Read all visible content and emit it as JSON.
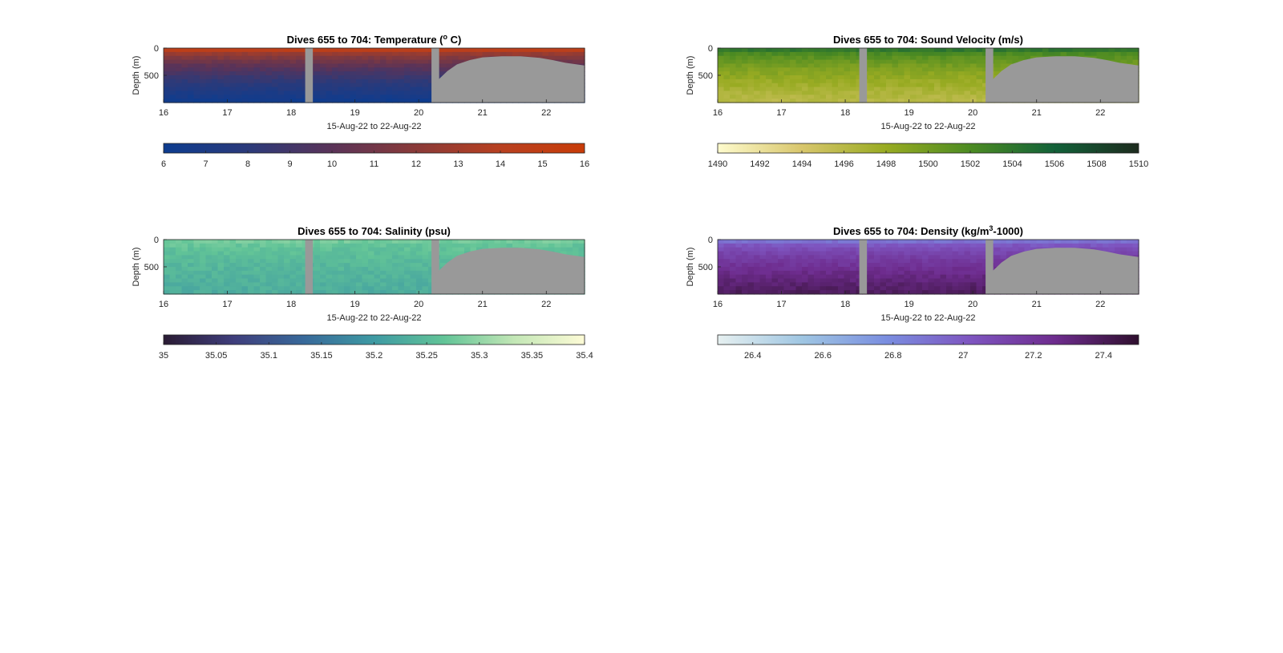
{
  "chart_data": [
    {
      "type": "heatmap",
      "title": "Dives 655 to 704: Temperature (° C)",
      "title_parts": [
        "Dives 655 to 704: Temperature (",
        "o",
        " C)"
      ],
      "xlabel": "15-Aug-22 to 22-Aug-22",
      "ylabel": "Depth (m)",
      "x_ticks": [
        "16",
        "17",
        "18",
        "19",
        "20",
        "21",
        "22"
      ],
      "y_ticks": [
        "0",
        "500"
      ],
      "xlim": [
        16,
        22.6
      ],
      "ylim": [
        0,
        1000
      ],
      "colorbar": {
        "ticks": [
          "6",
          "7",
          "8",
          "9",
          "10",
          "11",
          "12",
          "13",
          "14",
          "15",
          "16"
        ],
        "range": [
          6,
          16
        ],
        "colors": [
          "#0d3c8f",
          "#2b3a7a",
          "#5a3358",
          "#8a3a38",
          "#b84020",
          "#c83c08"
        ]
      },
      "surface_value": 14.5,
      "bottom_value": 6.3,
      "mask_color": "#999999"
    },
    {
      "type": "heatmap",
      "title": "Dives 655 to 704: Sound Velocity (m/s)",
      "title_parts": [
        "Dives 655 to 704: Sound Velocity (m/s)"
      ],
      "xlabel": "15-Aug-22 to 22-Aug-22",
      "ylabel": "Depth (m)",
      "x_ticks": [
        "16",
        "17",
        "18",
        "19",
        "20",
        "21",
        "22"
      ],
      "y_ticks": [
        "0",
        "500"
      ],
      "xlim": [
        16,
        22.6
      ],
      "ylim": [
        0,
        1000
      ],
      "colorbar": {
        "ticks": [
          "1490",
          "1492",
          "1494",
          "1496",
          "1498",
          "1500",
          "1502",
          "1504",
          "1506",
          "1508",
          "1510"
        ],
        "range": [
          1490,
          1510
        ],
        "colors": [
          "#fefbcd",
          "#d8c66c",
          "#98ab22",
          "#4c8b22",
          "#126139",
          "#1d2b1e"
        ]
      },
      "surface_value": 1504,
      "bottom_value": 1496,
      "mask_color": "#999999"
    },
    {
      "type": "heatmap",
      "title": "Dives 655 to 704: Salinity (psu)",
      "title_parts": [
        "Dives 655 to 704: Salinity (psu)"
      ],
      "xlabel": "15-Aug-22 to 22-Aug-22",
      "ylabel": "Depth (m)",
      "x_ticks": [
        "16",
        "17",
        "18",
        "19",
        "20",
        "21",
        "22"
      ],
      "y_ticks": [
        "0",
        "500"
      ],
      "xlim": [
        16,
        22.6
      ],
      "ylim": [
        0,
        1000
      ],
      "colorbar": {
        "ticks": [
          "35",
          "35.05",
          "35.1",
          "35.15",
          "35.2",
          "35.25",
          "35.3",
          "35.35",
          "35.4"
        ],
        "range": [
          35,
          35.4
        ],
        "colors": [
          "#2a1b34",
          "#3f3e7c",
          "#38699a",
          "#3e9aa3",
          "#62c497",
          "#c3e7b6",
          "#fdfbd6"
        ]
      },
      "surface_value": 35.28,
      "bottom_value": 35.23,
      "mask_color": "#999999"
    },
    {
      "type": "heatmap",
      "title": "Dives 655 to 704: Density (kg/m³-1000)",
      "title_parts": [
        "Dives 655 to 704: Density (kg/m",
        "3",
        "-1000)"
      ],
      "xlabel": "15-Aug-22 to 22-Aug-22",
      "ylabel": "Depth (m)",
      "x_ticks": [
        "16",
        "17",
        "18",
        "19",
        "20",
        "21",
        "22"
      ],
      "y_ticks": [
        "0",
        "500"
      ],
      "xlim": [
        16,
        22.6
      ],
      "ylim": [
        0,
        1000
      ],
      "colorbar": {
        "ticks": [
          "26.4",
          "26.6",
          "26.8",
          "27",
          "27.2",
          "27.4"
        ],
        "range": [
          26.3,
          27.5
        ],
        "tick_values": [
          26.4,
          26.6,
          26.8,
          27.0,
          27.2,
          27.4
        ],
        "colors": [
          "#e6f0f0",
          "#9fc6e2",
          "#7a8ee0",
          "#7e55c0",
          "#6e2c8e",
          "#2f0f2e"
        ]
      },
      "surface_value": 26.9,
      "bottom_value": 27.38,
      "mask_color": "#999999"
    }
  ]
}
